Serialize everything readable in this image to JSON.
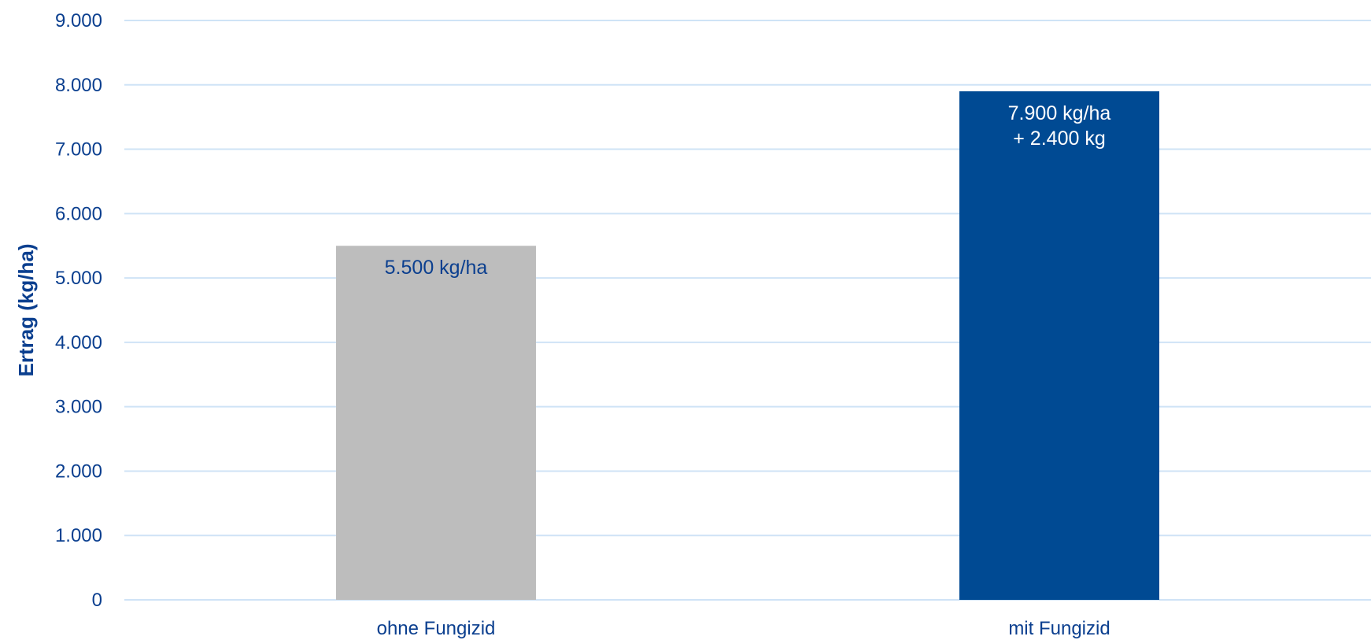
{
  "chart_data": {
    "type": "bar",
    "title": "",
    "xlabel": "",
    "ylabel": "Ertrag (kg/ha)",
    "categories": [
      "ohne Fungizid",
      "mit Fungizid"
    ],
    "values": [
      5500,
      7900
    ],
    "ylim": [
      0,
      9000
    ],
    "yticks": [
      0,
      1000,
      2000,
      3000,
      4000,
      5000,
      6000,
      7000,
      8000,
      9000
    ],
    "ytick_labels": [
      "0",
      "1.000",
      "2.000",
      "3.000",
      "4.000",
      "5.000",
      "6.000",
      "7.000",
      "8.000",
      "9.000"
    ],
    "data_labels": [
      [
        "5.500 kg/ha"
      ],
      [
        "7.900 kg/ha",
        "+ 2.400 kg"
      ]
    ],
    "bar_colors": [
      "#bdbdbd",
      "#004a93"
    ],
    "data_label_colors": [
      "#0b3f8f",
      "#ffffff"
    ],
    "grid": true,
    "legend": "none"
  }
}
